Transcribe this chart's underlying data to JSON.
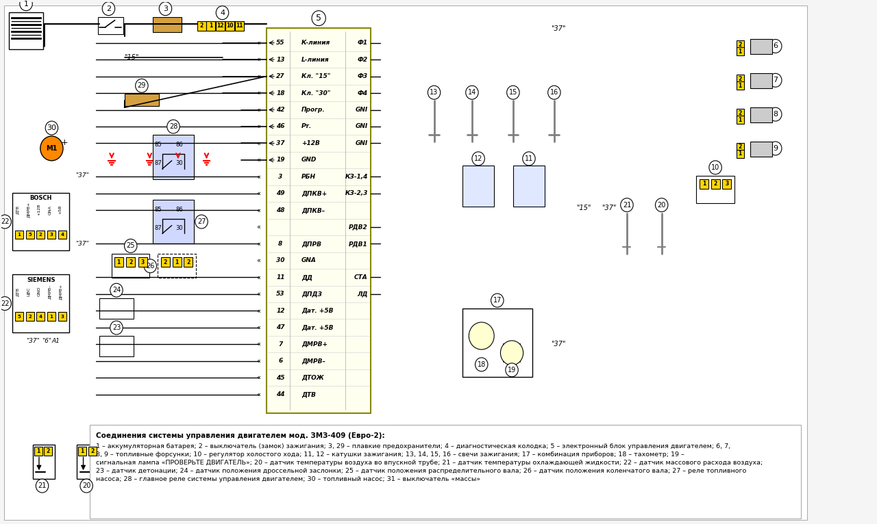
{
  "title": "Соединения системы управления двигателем мод. ЗМЗ-409 (Евро-2):",
  "caption": "1 – аккумуляторная батарея; 2 – выключатель (замок) зажигания; 3, 29 – плавкие предохранители; 4 – диагностическая колодка; 5 – электронный блок управления двигателем; 6, 7, 8, 9 – топливные форсунки; 10 – регулятор холостого хода; 11, 12 – катушки зажигания; 13, 14, 15, 16 – свечи зажигания; 17 – комбинация приборов; 18 – тахометр; 19 – сигнальная лампа «ПРОВЕРЬТЕ ДВИГАТЕЛЬ»; 20 – датчик температуры воздуха во впускной трубе; 21 – датчик температуры охлаждающей жидкости; 22 – датчик массового расхода воздуха; 23 – датчик детонации; 24 – датчик положения дроссельной заслонки; 25 – датчик положения распределительного вала; 26 – датчик положения коленчатого вала; 27 – реле топливного насоса; 28 – главное реле системы управления двигателем; 30 – топливный насос; 31 – выключатель «массы»",
  "bg_color": "#f5f5f5",
  "ecm_bg": "#fffff0",
  "ecm_border": "#cccc00",
  "yellow_label_bg": "#ffd700",
  "connector_bg": "#e0e0ff",
  "pin_left": [
    {
      "num": "55",
      "name": "К-линия",
      "right": "Ф1"
    },
    {
      "num": "13",
      "name": "L-линия",
      "right": "Ф2"
    },
    {
      "num": "27",
      "name": "Кл. \"15\"",
      "right": "Ф3"
    },
    {
      "num": "18",
      "name": "Кл. \"30\"",
      "right": "Ф4"
    },
    {
      "num": "42",
      "name": "Прогр.",
      "right": "GNI"
    },
    {
      "num": "46",
      "name": "Рт.",
      "right": "GNI"
    },
    {
      "num": "37",
      "name": "+12В",
      "right": "GNI"
    },
    {
      "num": "19",
      "name": "GND",
      "right": ""
    },
    {
      "num": "3",
      "name": "РБН",
      "right": "КЗ-1,4"
    },
    {
      "num": "49",
      "name": "ДПКВ+",
      "right": "КЗ-2,3"
    },
    {
      "num": "48",
      "name": "ДПКВ–",
      "right": ""
    },
    {
      "num": "",
      "name": "",
      "right": "РДВ2"
    },
    {
      "num": "8",
      "name": "ДПРВ",
      "right": "РДВ1"
    },
    {
      "num": "30",
      "name": "GNA",
      "right": ""
    },
    {
      "num": "11",
      "name": "ДД",
      "right": "СТА"
    },
    {
      "num": "53",
      "name": "ДПДЗ",
      "right": "ЛД"
    },
    {
      "num": "12",
      "name": "Дат. +5В",
      "right": ""
    },
    {
      "num": "47",
      "name": "Дат. +5В",
      "right": ""
    },
    {
      "num": "7",
      "name": "ДМРВ+",
      "right": ""
    },
    {
      "num": "6",
      "name": "ДМРВ–",
      "right": ""
    },
    {
      "num": "45",
      "name": "ДТОЖ",
      "right": ""
    },
    {
      "num": "44",
      "name": "ДТВ",
      "right": ""
    }
  ]
}
